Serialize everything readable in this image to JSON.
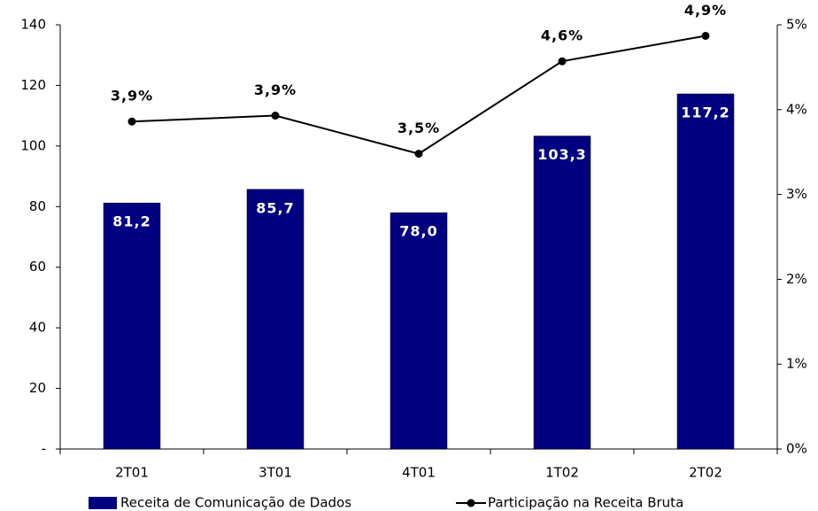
{
  "chart_data": {
    "type": "combo",
    "categories": [
      "2T01",
      "3T01",
      "4T01",
      "1T02",
      "2T02"
    ],
    "series": [
      {
        "name": "Receita de Comunicação de Dados",
        "type": "bar",
        "color": "#000080",
        "values": [
          81.2,
          85.7,
          78.0,
          103.3,
          117.2
        ],
        "value_labels": [
          "81,2",
          "85,7",
          "78,0",
          "103,3",
          "117,2"
        ]
      },
      {
        "name": "Participação na Receita Bruta",
        "type": "line",
        "axis": "y2",
        "color": "#000000",
        "values": [
          3.86,
          3.93,
          3.48,
          4.57,
          4.87
        ],
        "value_labels": [
          "3,9%",
          "3,9%",
          "3,5%",
          "4,6%",
          "4,9%"
        ]
      }
    ],
    "ylim": [
      0,
      140
    ],
    "yticks": [
      {
        "value": 0,
        "label": "-"
      },
      20,
      40,
      60,
      80,
      100,
      120,
      140
    ],
    "y2lim": [
      0,
      5
    ],
    "y2ticks": [
      {
        "value": 0,
        "label": "0%"
      },
      {
        "value": 1,
        "label": "1%"
      },
      {
        "value": 2,
        "label": "2%"
      },
      {
        "value": 3,
        "label": "3%"
      },
      {
        "value": 4,
        "label": "4%"
      },
      {
        "value": 5,
        "label": "5%"
      }
    ],
    "legend": "bottom"
  }
}
